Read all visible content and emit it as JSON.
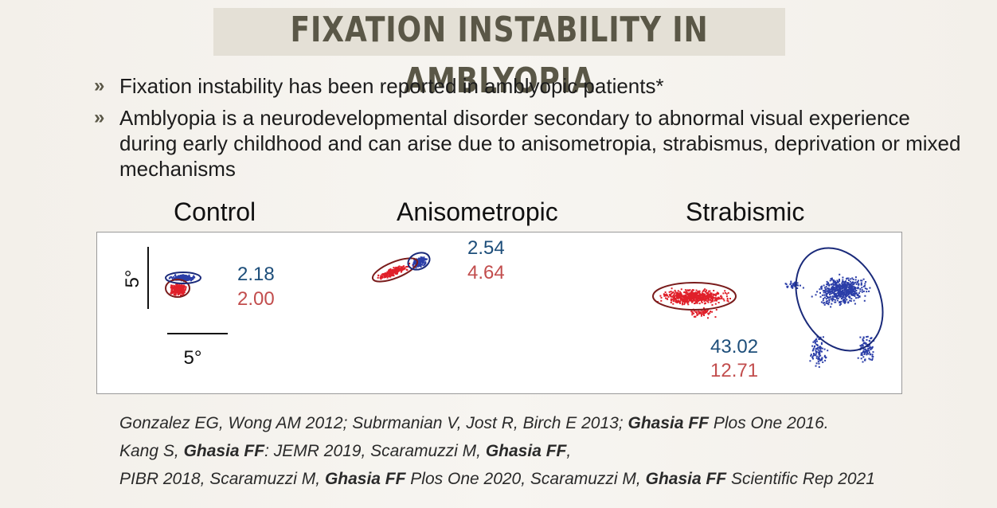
{
  "title": "FIXATION INSTABILITY IN AMBLYOPIA",
  "bullets": [
    "Fixation instability has been reported in amblyopic patients*",
    "Amblyopia is a neurodevelopmental disorder secondary to abnormal visual experience during early childhood and can arise due to anisometropia, strabismus, deprivation or mixed mechanisms"
  ],
  "bullet_marker": "»",
  "panels": [
    {
      "label": "Control",
      "blue_value": "2.18",
      "red_value": "2.00"
    },
    {
      "label": "Anisometropic",
      "blue_value": "2.54",
      "red_value": "4.64"
    },
    {
      "label": "Strabismic",
      "blue_value": "43.02",
      "red_value": "12.71"
    }
  ],
  "scale_bars": {
    "vertical": "5°",
    "horizontal": "5°"
  },
  "colors": {
    "blue": "#1d4e7a",
    "red": "#c24d4d",
    "blue_dots": "#2b3ea8",
    "red_dots": "#e0202a",
    "ellipse": "#7a1c1c",
    "title": "#5a5747"
  },
  "references": [
    [
      {
        "t": "Gonzalez EG, Wong AM 2012; Subrmanian V, Jost R, Birch E 2013; "
      },
      {
        "t": "Ghasia FF",
        "b": true
      },
      {
        "t": " Plos One 2016."
      }
    ],
    [
      {
        "t": "Kang S, "
      },
      {
        "t": "Ghasia FF",
        "b": true
      },
      {
        "t": ": JEMR 2019, Scaramuzzi M, "
      },
      {
        "t": "Ghasia FF",
        "b": true
      },
      {
        "t": ","
      }
    ],
    [
      {
        "t": "PIBR 2018, Scaramuzzi M, "
      },
      {
        "t": "Ghasia FF",
        "b": true
      },
      {
        "t": " Plos One 2020, Scaramuzzi M, "
      },
      {
        "t": "Ghasia FF",
        "b": true
      },
      {
        "t": " Scientific Rep 2021"
      }
    ]
  ]
}
